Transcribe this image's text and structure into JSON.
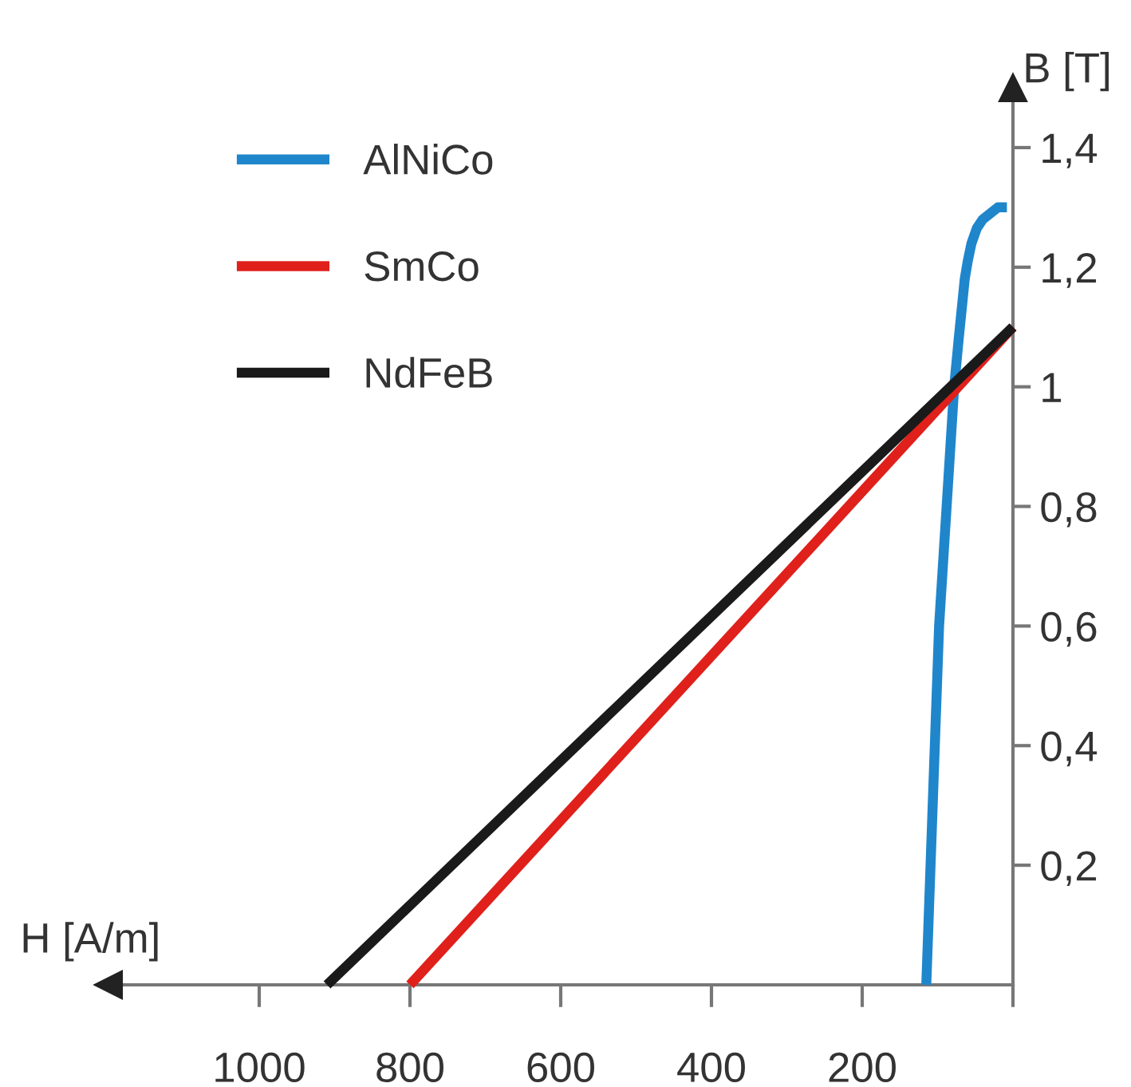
{
  "chart_data": {
    "type": "line",
    "xlabel": "H [A/m]",
    "ylabel": "B [T]",
    "xlim": [
      1200,
      0
    ],
    "ylim": [
      0,
      1.5
    ],
    "xticks": [
      1000,
      800,
      600,
      400,
      200,
      {
        "value": 0,
        "label": null
      }
    ],
    "yticks": [
      {
        "value": 0.2,
        "label": "0,2"
      },
      {
        "value": 0.4,
        "label": "0,4"
      },
      {
        "value": 0.6,
        "label": "0,6"
      },
      {
        "value": 0.8,
        "label": "0,8"
      },
      1,
      {
        "value": 1.2,
        "label": "1,2"
      },
      {
        "value": 1.4,
        "label": "1,4"
      }
    ],
    "grid": false,
    "legend": "top left",
    "marker": "none",
    "line_style": "solid",
    "series": [
      {
        "name": "AlNiCo",
        "color": "#1f86cc",
        "x": [
          115,
          98,
          88,
          78,
          72,
          68,
          64,
          60,
          55,
          48,
          40,
          30,
          20,
          8
        ],
        "values": [
          0,
          0.6,
          0.8,
          1.0,
          1.08,
          1.13,
          1.18,
          1.21,
          1.24,
          1.265,
          1.28,
          1.29,
          1.3,
          1.3
        ]
      },
      {
        "name": "SmCo",
        "color": "#e0201b",
        "x": [
          800,
          0
        ],
        "values": [
          0,
          1.1
        ]
      },
      {
        "name": "NdFeB",
        "color": "#1a1a1a",
        "x": [
          910,
          0
        ],
        "values": [
          0,
          1.1
        ]
      }
    ]
  }
}
